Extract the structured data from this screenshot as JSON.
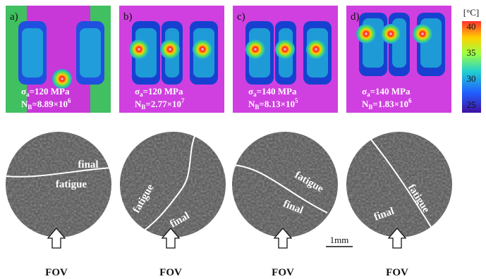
{
  "panels": [
    {
      "label": "a)",
      "stress": {
        "symbol": "σ",
        "sub": "a",
        "value": "=120 MPa"
      },
      "cycles": {
        "symbol": "N",
        "sub": "B",
        "base": "=8.89×10",
        "exp": "6"
      },
      "crack_labels": [
        "final",
        "fatigue"
      ],
      "view": "FOV"
    },
    {
      "label": "b)",
      "stress": {
        "symbol": "σ",
        "sub": "a",
        "value": "=120 MPa"
      },
      "cycles": {
        "symbol": "N",
        "sub": "B",
        "base": "=2.77×10",
        "exp": "7"
      },
      "crack_labels": [
        "fatigue",
        "final"
      ],
      "view": "FOV"
    },
    {
      "label": "c)",
      "stress": {
        "symbol": "σ",
        "sub": "a",
        "value": "=140 MPa"
      },
      "cycles": {
        "symbol": "N",
        "sub": "B",
        "base": "=8.13×10",
        "exp": "5"
      },
      "crack_labels": [
        "fatigue",
        "final"
      ],
      "view": "FOV"
    },
    {
      "label": "d)",
      "stress": {
        "symbol": "σ",
        "sub": "a",
        "value": "=140 MPa"
      },
      "cycles": {
        "symbol": "N",
        "sub": "B",
        "base": "=1.83×10",
        "exp": "6"
      },
      "crack_labels": [
        "fatigue",
        "final"
      ],
      "view": "FOV"
    }
  ],
  "colorbar": {
    "unit": "[°C]",
    "ticks": [
      40,
      35,
      30,
      25
    ]
  },
  "scale_bar": "1mm"
}
